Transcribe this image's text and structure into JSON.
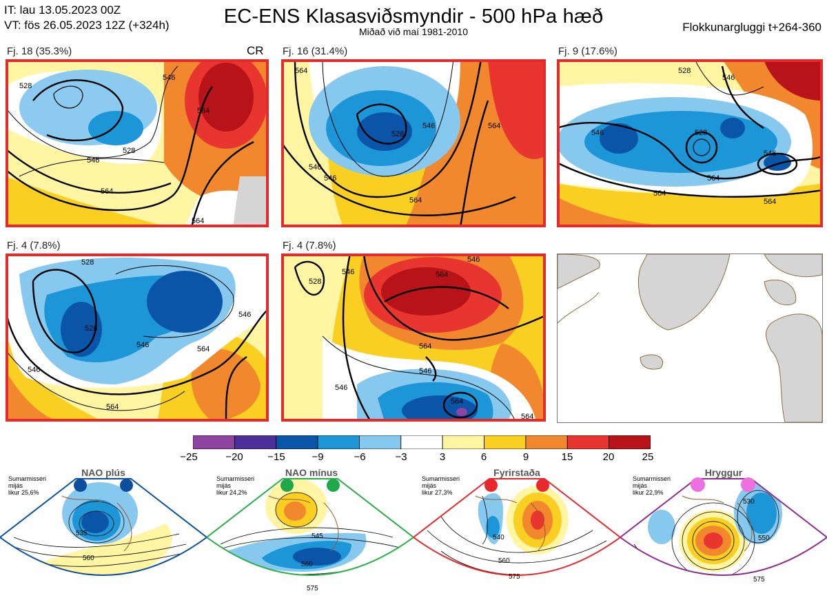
{
  "header": {
    "it_line": "IT: lau 13.05.2023 00Z",
    "vt_line": "VT: fös 26.05.2023 12Z  (+324h)",
    "title": "EC-ENS Klasasviðsmyndir - 500 hPa hæð",
    "subtitle": "Miðað við maí 1981-2010",
    "window": "Flokkunargluggi t+264-360"
  },
  "cluster_maps": [
    {
      "label": "Fj. 18 (35.3%)",
      "extra": "CR",
      "contour_labels": [
        "528",
        "546",
        "564",
        "546",
        "564",
        "564",
        "528"
      ]
    },
    {
      "label": "Fj. 16 (31.4%)",
      "contour_labels": [
        "546",
        "546",
        "564",
        "528",
        "546",
        "564",
        "564"
      ]
    },
    {
      "label": "Fj. 9 (17.6%)",
      "contour_labels": [
        "546",
        "528",
        "564",
        "528",
        "546",
        "564",
        "546",
        "564"
      ]
    },
    {
      "label": "Fj. 4 (7.8%)",
      "contour_labels": [
        "528",
        "546",
        "546",
        "564",
        "528",
        "564",
        "546"
      ]
    },
    {
      "label": "Fj. 4 (7.8%)",
      "contour_labels": [
        "528",
        "546",
        "564",
        "564",
        "546",
        "546",
        "564",
        "546",
        "564"
      ]
    }
  ],
  "colorbar": {
    "colors": [
      "#8e44a0",
      "#4d2f9b",
      "#0b55a8",
      "#1d96d8",
      "#86c8ee",
      "#ffffff",
      "#fff5a3",
      "#f9cf22",
      "#f1882e",
      "#e83530",
      "#b71319"
    ],
    "ticks": [
      "−25",
      "−20",
      "−15",
      "−9",
      "−6",
      "−3",
      "3",
      "6",
      "9",
      "15",
      "20",
      "25"
    ]
  },
  "regimes": [
    {
      "name": "NAO plús",
      "info": [
        "Sumarmisseri",
        "mijás",
        "likur 25,6%"
      ],
      "color": "#0b4f9e",
      "dot_color": "#0b4f9e",
      "contour_labels": [
        "535",
        "560"
      ]
    },
    {
      "name": "NAO mínus",
      "info": [
        "Sumarmisseri",
        "mijás",
        "likur 24,2%"
      ],
      "color": "#27ae46",
      "dot_color": "#1fa84a",
      "contour_labels": [
        "545",
        "560",
        "575"
      ]
    },
    {
      "name": "Fyrirstaða",
      "info": [
        "Sumarmisseri",
        "mijás",
        "likur 27,3%"
      ],
      "color": "#e8282c",
      "dot_color": "#e8282c",
      "contour_labels": [
        "540",
        "560",
        "575"
      ]
    },
    {
      "name": "Hryggur",
      "info": [
        "Sumarmisseri",
        "mijás",
        "likur 22,9%"
      ],
      "color": "#8e2c8e",
      "dot_color": "#ee6fe0",
      "contour_labels": [
        "530",
        "550",
        "575"
      ]
    }
  ]
}
